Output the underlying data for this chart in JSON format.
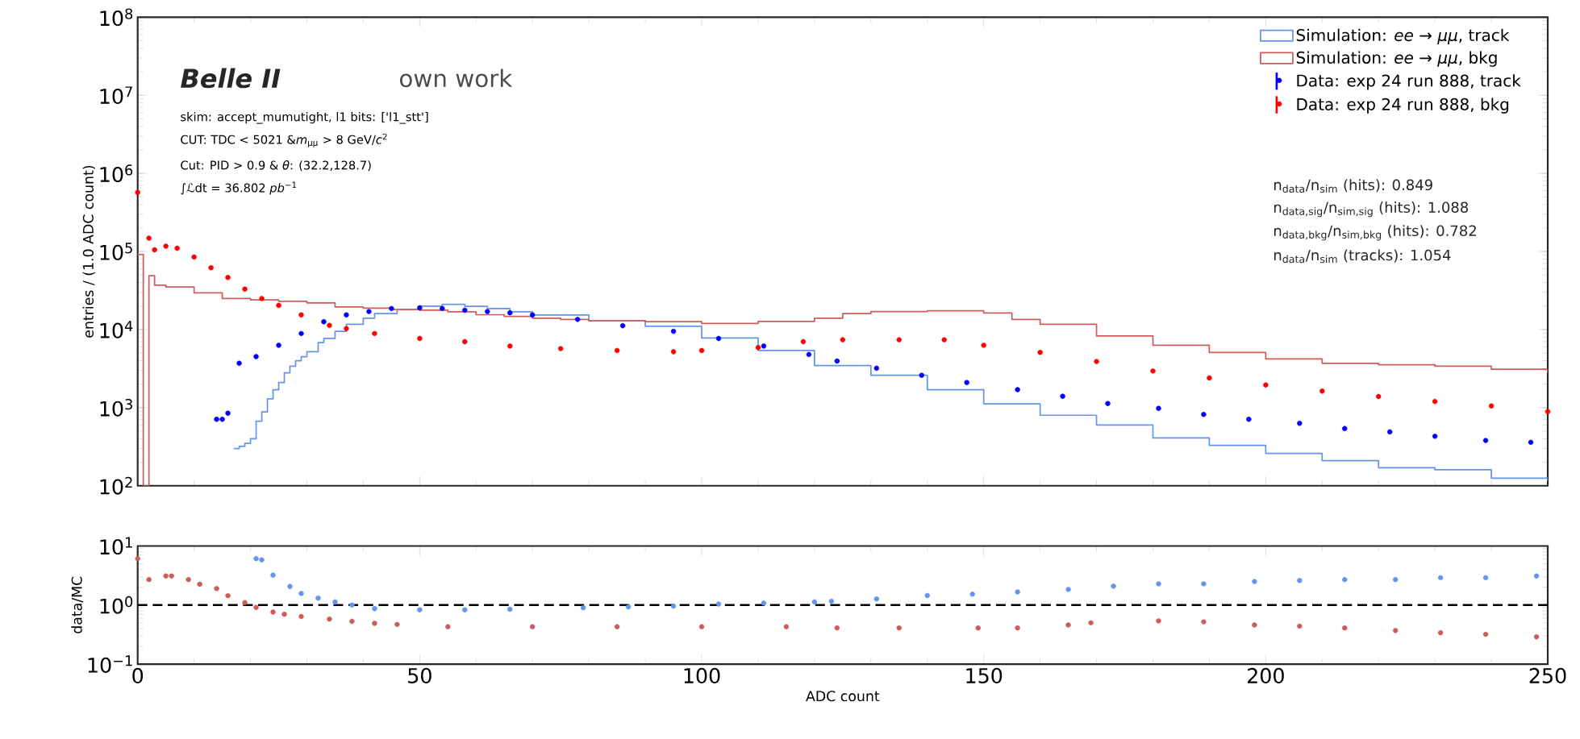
{
  "chart_data": [
    {
      "type": "step",
      "ylabel": "entries / (1.0 ADC count)",
      "log": true,
      "legend": "top right",
      "xlim": [
        0,
        250
      ],
      "xticks": [
        0,
        50,
        100,
        150,
        200,
        250
      ],
      "tick_labels": "y",
      "ylim": [
        100,
        100000000
      ],
      "yticks": [
        {
          "value": 100,
          "label": "10$^{2}$"
        },
        {
          "value": 1000,
          "label": "10$^{3}$"
        },
        {
          "value": 10000,
          "label": "10$^{4}$"
        },
        {
          "value": 100000,
          "label": "10$^{5}$"
        },
        {
          "value": 1000000,
          "label": "10$^{6}$"
        },
        {
          "value": 10000000,
          "label": "10$^{7}$"
        },
        {
          "value": 100000000,
          "label": "10$^{8}$"
        }
      ],
      "annotations": [
        "Belle II",
        "own work",
        "skim: accept_mumutight, l1 bits: ['l1_stt']",
        "CUT: TDC < 5021 &*m*$_{μμ}$ > 8 GeV/*c*$^{2}$",
        "Cut: PID > 0.9 & *θ*: (32.2,128.7)",
        "∫ℒdt = 36.802 *pb*$^{−1}$",
        "n$_{data}$/n$_{sim}$ (hits): 0.849",
        "n$_{data,sig}$/n$_{sim,sig}$ (hits): 1.088",
        "n$_{data,bkg}$/n$_{sim,bkg}$ (hits): 0.782",
        "n$_{data}$/n$_{sim}$ (tracks): 1.054"
      ],
      "series": [
        {
          "name": "Simulation: *ee* → *μμ*, track",
          "type": "step",
          "color": "#6495ed",
          "x": [
            17,
            18,
            19,
            20,
            21,
            22,
            23,
            24,
            25,
            26,
            27,
            28,
            29,
            30,
            32,
            33,
            35,
            37,
            40,
            42,
            46,
            50,
            54,
            58,
            62,
            66,
            70,
            80,
            90,
            100,
            110,
            120,
            130,
            140,
            150,
            160,
            170,
            180,
            190,
            200,
            210,
            220,
            230,
            240,
            250
          ],
          "values": [
            300,
            320,
            350,
            400,
            670,
            880,
            1300,
            1700,
            2100,
            2800,
            3400,
            4000,
            4500,
            5200,
            6800,
            7700,
            9500,
            11700,
            14000,
            16000,
            18000,
            20000,
            21000,
            19800,
            18600,
            16900,
            15400,
            13000,
            11000,
            7800,
            5400,
            3450,
            2600,
            1700,
            1120,
            800,
            600,
            410,
            330,
            260,
            210,
            170,
            160,
            125,
            115
          ]
        },
        {
          "name": "Simulation: *ee* → *μμ*, bkg",
          "type": "step",
          "color": "#cd5c5c",
          "x": [
            0,
            1,
            2,
            3,
            5,
            10,
            15,
            20,
            25,
            30,
            35,
            40,
            45,
            50,
            55,
            60,
            65,
            70,
            75,
            80,
            90,
            100,
            110,
            120,
            125,
            130,
            140,
            150,
            155,
            160,
            170,
            180,
            190,
            200,
            210,
            220,
            230,
            240,
            250
          ],
          "values": [
            92000,
            100,
            49000,
            37000,
            35000,
            29500,
            25000,
            24000,
            23000,
            22000,
            19500,
            18800,
            18000,
            17700,
            16900,
            15500,
            14700,
            14000,
            13500,
            13000,
            12600,
            12000,
            12700,
            14000,
            16000,
            17000,
            17400,
            16300,
            13500,
            11700,
            8300,
            6300,
            5100,
            4200,
            3700,
            3550,
            3400,
            3100,
            2800
          ]
        },
        {
          "name": "Data: exp 24 run 888, track",
          "type": "scatter",
          "marker": "circle",
          "color": "#0000ff",
          "x": [
            14,
            15,
            16,
            18,
            21,
            25,
            29,
            33,
            37,
            41,
            45,
            50,
            54,
            58,
            62,
            66,
            70,
            78,
            86,
            95,
            103,
            111,
            119,
            124,
            131,
            139,
            147,
            156,
            164,
            172,
            181,
            189,
            197,
            206,
            214,
            222,
            230,
            239,
            247
          ],
          "values": [
            710,
            710,
            850,
            3700,
            4500,
            6300,
            8900,
            12600,
            15400,
            17000,
            18600,
            19000,
            18600,
            17700,
            17000,
            16400,
            15400,
            13500,
            11200,
            9500,
            7700,
            6150,
            4800,
            3950,
            3200,
            2600,
            2100,
            1700,
            1400,
            1130,
            980,
            820,
            710,
            630,
            540,
            490,
            430,
            380,
            360
          ]
        },
        {
          "name": "Data: exp 24 run 888, bkg",
          "type": "scatter",
          "marker": "circle",
          "color": "#ff0000",
          "x": [
            0,
            2,
            3,
            5,
            7,
            10,
            13,
            16,
            19,
            22,
            25,
            29,
            34,
            37,
            42,
            50,
            58,
            66,
            75,
            85,
            95,
            100,
            110,
            118,
            125,
            135,
            143,
            150,
            160,
            170,
            180,
            190,
            200,
            210,
            220,
            230,
            240,
            250
          ],
          "values": [
            570000,
            148000,
            105000,
            117000,
            110000,
            85000,
            62000,
            46500,
            33000,
            25000,
            20400,
            15400,
            11300,
            10300,
            8900,
            7700,
            7000,
            6150,
            5700,
            5400,
            5200,
            5400,
            5900,
            7000,
            7400,
            7400,
            7400,
            6300,
            5100,
            3900,
            2950,
            2400,
            1950,
            1630,
            1390,
            1200,
            1050,
            890
          ]
        }
      ]
    },
    {
      "type": "scatter",
      "xlabel": "ADC count",
      "ylabel": "data/MC",
      "log": true,
      "xlim": [
        0,
        250
      ],
      "xticks": [
        0,
        50,
        100,
        150,
        200,
        250
      ],
      "ylim": [
        0.1,
        10
      ],
      "yticks": [
        {
          "value": 0.1,
          "label": "10$^{−1}$"
        },
        {
          "value": 1,
          "label": "10$^{0}$"
        },
        {
          "value": 10,
          "label": "10$^{1}$"
        }
      ],
      "ref_lines": [
        {
          "axis": "y",
          "value": 1,
          "color": "#000000",
          "line_style": "dashed"
        }
      ],
      "series": [
        {
          "color": "#6495ed",
          "marker": "circle",
          "x": [
            21,
            22,
            24,
            27,
            29,
            32,
            35,
            38,
            42,
            50,
            58,
            66,
            79,
            87,
            95,
            103,
            111,
            120,
            123,
            131,
            140,
            148,
            156,
            165,
            173,
            181,
            189,
            198,
            206,
            214,
            223,
            231,
            239,
            248
          ],
          "values": [
            6.1,
            5.8,
            3.2,
            2.06,
            1.57,
            1.31,
            1.13,
            1.0,
            0.87,
            0.83,
            0.83,
            0.85,
            0.9,
            0.93,
            0.96,
            1.04,
            1.08,
            1.13,
            1.16,
            1.27,
            1.45,
            1.53,
            1.67,
            1.84,
            2.09,
            2.29,
            2.29,
            2.5,
            2.6,
            2.7,
            2.7,
            2.9,
            2.9,
            3.1
          ]
        },
        {
          "color": "#cd5c5c",
          "marker": "circle",
          "x": [
            0,
            2,
            5,
            6,
            9,
            11,
            14,
            16,
            19,
            21,
            24,
            26,
            29,
            34,
            38,
            42,
            46,
            55,
            70,
            85,
            100,
            115,
            124,
            135,
            149,
            156,
            165,
            169,
            181,
            189,
            198,
            206,
            214,
            223,
            231,
            239,
            248
          ],
          "values": [
            6.1,
            2.7,
            3.1,
            3.1,
            2.7,
            2.25,
            1.9,
            1.44,
            1.1,
            0.91,
            0.76,
            0.7,
            0.64,
            0.58,
            0.53,
            0.49,
            0.47,
            0.43,
            0.43,
            0.43,
            0.43,
            0.43,
            0.41,
            0.41,
            0.41,
            0.41,
            0.46,
            0.5,
            0.54,
            0.52,
            0.46,
            0.44,
            0.41,
            0.37,
            0.34,
            0.32,
            0.29
          ]
        }
      ]
    }
  ]
}
